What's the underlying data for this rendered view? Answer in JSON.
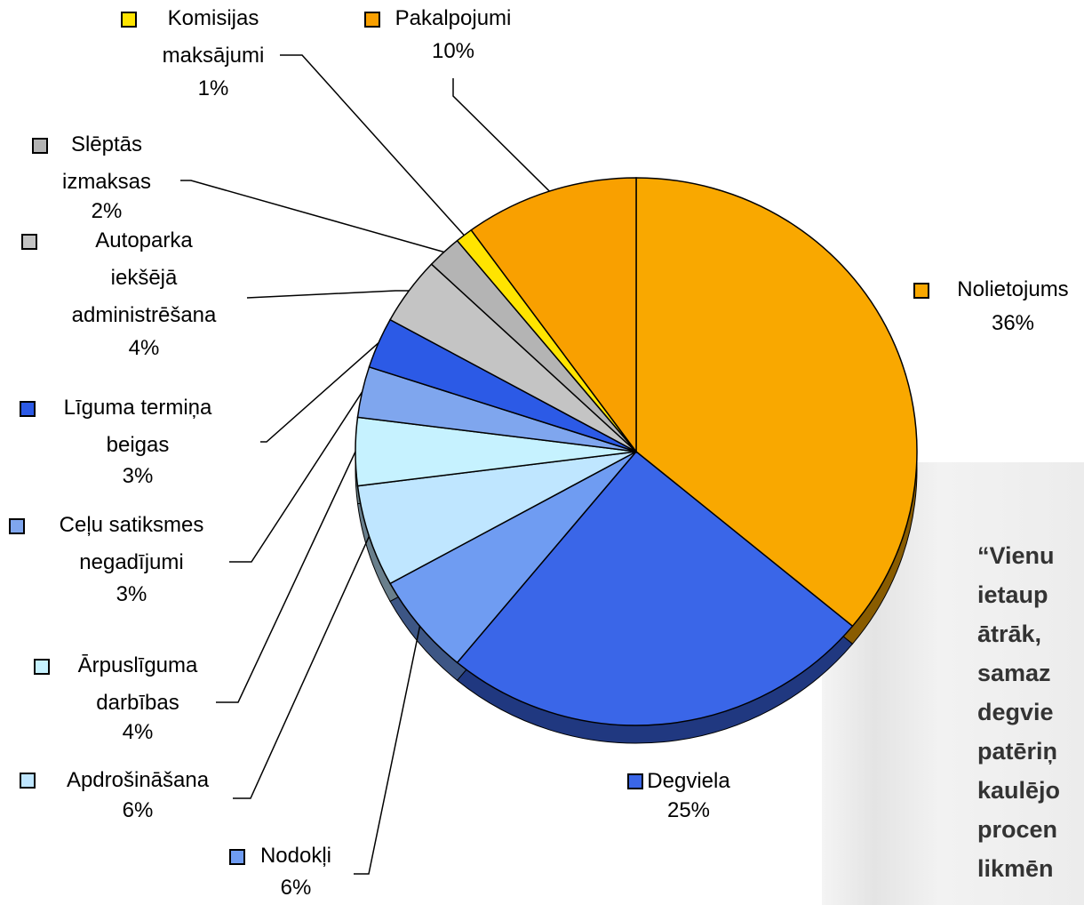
{
  "chart_data": {
    "type": "pie",
    "categories": [
      "Nolietojums",
      "Degviela",
      "Nodokļi",
      "Apdrošināšana",
      "Ārpuslīguma\ndarbības",
      "Ceļu satiksmes\nnegadījumi",
      "Līguma termiņa\nbeigas",
      "Autoparka\niekšējā\nadministrēšana",
      "Slēptās\nizmaksas",
      "Komisijas\nmaksājumi",
      "Pakalpojumi"
    ],
    "values": [
      36,
      25,
      6,
      6,
      4,
      3,
      3,
      4,
      2,
      1,
      10
    ],
    "value_labels": [
      "36%",
      "25%",
      "6%",
      "6%",
      "4%",
      "3%",
      "3%",
      "4%",
      "2%",
      "1%",
      "10%"
    ],
    "colors": [
      "#f9a800",
      "#3a66e8",
      "#6f9cf2",
      "#bfe6ff",
      "#c6f2ff",
      "#7fa6ee",
      "#2c5ae6",
      "#c4c4c4",
      "#b4b4b4",
      "#ffe400",
      "#f9a000"
    ],
    "annotation_lines": [
      "“Vienu",
      "ietaup",
      "ātrāk,",
      "samaz",
      "degvie",
      "patēriņ",
      "kaulējo",
      "procen",
      "likmēn"
    ]
  }
}
